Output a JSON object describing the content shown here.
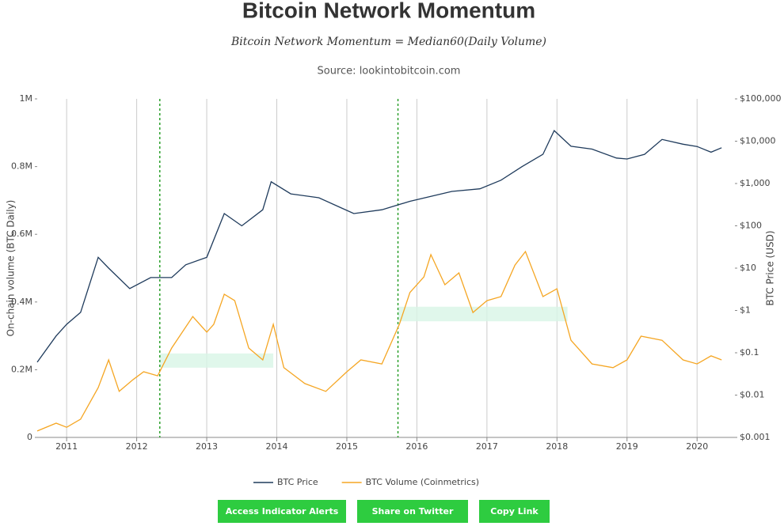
{
  "chart_data": {
    "type": "line",
    "title": "Bitcoin Network Momentum",
    "subtitle": "Bitcoin Network Momentum = Median60(Daily Volume)",
    "source": "Source: lookintobitcoin.com",
    "y_label": "On-chain volume (BTC Daily)",
    "y2_label": "BTC Price (USD)",
    "xlim": [
      2010.58,
      2020.54
    ],
    "xticks": [
      2011,
      2012,
      2013,
      2014,
      2015,
      2016,
      2017,
      2018,
      2019,
      2020
    ],
    "ylim": [
      0,
      1000000
    ],
    "yticks": [
      {
        "value": 0,
        "label": "0"
      },
      {
        "value": 200000,
        "label": "0.2M"
      },
      {
        "value": 400000,
        "label": "0.4M"
      },
      {
        "value": 600000,
        "label": "0.6M"
      },
      {
        "value": 800000,
        "label": "0.8M"
      },
      {
        "value": 1000000,
        "label": "1M"
      }
    ],
    "y2lim": [
      0.001,
      100000
    ],
    "y2log": true,
    "y2ticks": [
      {
        "value": 0.001,
        "label": "$0.001"
      },
      {
        "value": 0.01,
        "label": "$0.01"
      },
      {
        "value": 0.1,
        "label": "$0.1"
      },
      {
        "value": 1,
        "label": "$1"
      },
      {
        "value": 10,
        "label": "$10"
      },
      {
        "value": 100,
        "label": "$100"
      },
      {
        "value": 1000,
        "label": "$1,000"
      },
      {
        "value": 10000,
        "label": "$10,000"
      },
      {
        "value": 100000,
        "label": "$100,000"
      }
    ],
    "grid_x": true,
    "signal_lines": [
      2012.33,
      2015.73
    ],
    "bands": [
      {
        "x": [
          2012.33,
          2013.95
        ],
        "y": [
          206000,
          248000
        ]
      },
      {
        "x": [
          2015.73,
          2018.15
        ],
        "y": [
          343000,
          386000
        ]
      }
    ],
    "band_color": "#d8f5e6",
    "signal_color": "#2ca02c",
    "series": [
      {
        "name": "BTC Price",
        "color": "#1f3b5c",
        "axis": "y2",
        "x": [
          2010.58,
          2010.85,
          2011.0,
          2011.2,
          2011.45,
          2011.6,
          2011.9,
          2012.2,
          2012.5,
          2012.7,
          2013.0,
          2013.25,
          2013.5,
          2013.8,
          2013.92,
          2014.2,
          2014.6,
          2014.9,
          2015.1,
          2015.5,
          2015.9,
          2016.5,
          2016.9,
          2017.2,
          2017.5,
          2017.8,
          2017.96,
          2018.2,
          2018.5,
          2018.85,
          2019.0,
          2019.25,
          2019.5,
          2019.8,
          2020.0,
          2020.2,
          2020.35
        ],
        "values": [
          0.06,
          0.25,
          0.47,
          0.9,
          18,
          10,
          3.3,
          6,
          6,
          12,
          18,
          195,
          100,
          240,
          1100,
          570,
          460,
          275,
          195,
          240,
          380,
          650,
          750,
          1200,
          2500,
          4900,
          17800,
          7600,
          6500,
          4000,
          3800,
          4900,
          11000,
          8500,
          7500,
          5500,
          7000
        ]
      },
      {
        "name": "BTC Volume (Coinmetrics)",
        "color": "#f5a623",
        "x": [
          2010.58,
          2010.85,
          2011.0,
          2011.2,
          2011.45,
          2011.6,
          2011.75,
          2011.95,
          2012.1,
          2012.3,
          2012.5,
          2012.8,
          2013.0,
          2013.1,
          2013.25,
          2013.4,
          2013.6,
          2013.8,
          2013.95,
          2014.1,
          2014.4,
          2014.7,
          2015.0,
          2015.2,
          2015.5,
          2015.75,
          2015.9,
          2016.1,
          2016.2,
          2016.4,
          2016.6,
          2016.8,
          2017.0,
          2017.2,
          2017.4,
          2017.55,
          2017.8,
          2018.0,
          2018.2,
          2018.5,
          2018.8,
          2019.0,
          2019.2,
          2019.5,
          2019.8,
          2020.0,
          2020.2,
          2020.35
        ],
        "values": [
          19000,
          42000,
          30000,
          54000,
          147000,
          229000,
          136000,
          171000,
          194000,
          182000,
          264000,
          357000,
          311000,
          334000,
          423000,
          404000,
          264000,
          229000,
          334000,
          206000,
          159000,
          136000,
          194000,
          229000,
          217000,
          334000,
          428000,
          474000,
          540000,
          451000,
          486000,
          369000,
          404000,
          416000,
          509000,
          549000,
          416000,
          439000,
          287000,
          217000,
          206000,
          229000,
          299000,
          287000,
          229000,
          217000,
          241000,
          229000
        ]
      }
    ]
  },
  "buttons": [
    "Access Indicator Alerts",
    "Share on Twitter",
    "Copy Link"
  ]
}
